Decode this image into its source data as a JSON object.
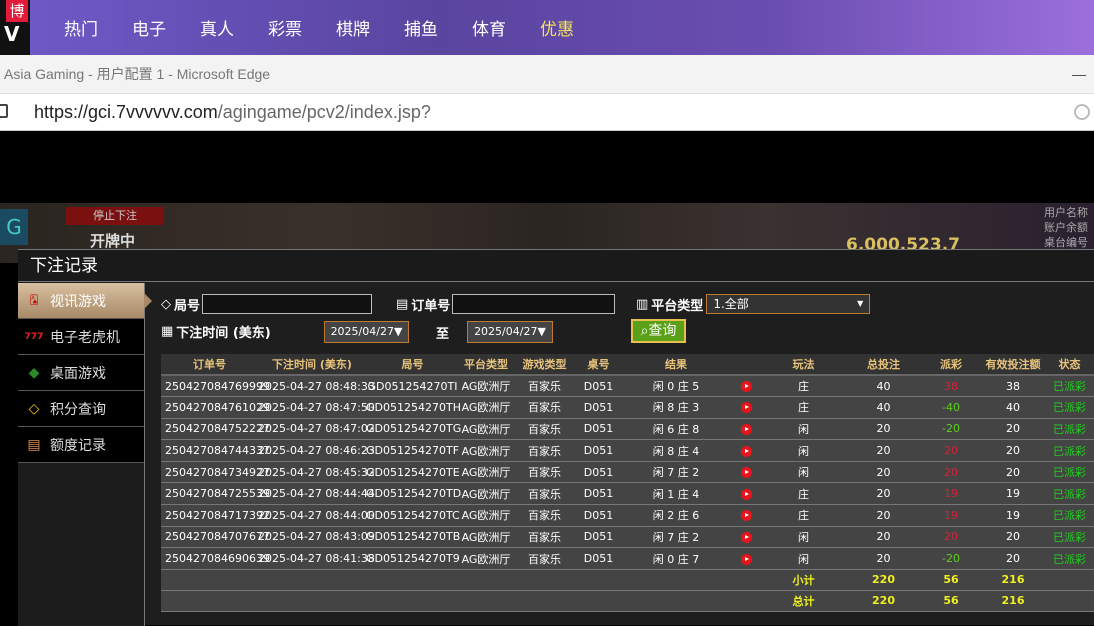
{
  "site_nav": {
    "logo_text": "博",
    "items": [
      "热门",
      "电子",
      "真人",
      "彩票",
      "棋牌",
      "捕鱼",
      "体育",
      "优惠"
    ],
    "highlight_index": 7
  },
  "browser": {
    "title": "Asia Gaming - 用户配置 1 - Microsoft Edge",
    "url_host": "https://gci.7vvvvvv.com",
    "url_path": "/agingame/pcv2/index.jsp?",
    "minimize": "—"
  },
  "background": {
    "stop_label": "停止下注",
    "open_label": "开牌中",
    "balance": "6,000,523.7",
    "user_lines": [
      "用户名称",
      "账户余额",
      "桌台编号"
    ]
  },
  "modal": {
    "title": "下注记录",
    "sidebar": [
      {
        "label": "视讯游戏",
        "icon": "playing-cards-icon",
        "active": true
      },
      {
        "label": "电子老虎机",
        "icon": "slot-777-icon"
      },
      {
        "label": "桌面游戏",
        "icon": "table-game-chips-icon"
      },
      {
        "label": "积分查询",
        "icon": "diamond-icon"
      },
      {
        "label": "额度记录",
        "icon": "document-icon"
      }
    ],
    "filters": {
      "round_label": "局号",
      "round_value": "",
      "order_label": "订单号",
      "order_value": "",
      "platform_label": "平台类型",
      "platform_value": "1.全部",
      "time_label": "下注时间 (美东)",
      "date_from": "2025/04/27",
      "to_label": "至",
      "date_to": "2025/04/27",
      "search_label": "查询"
    },
    "table": {
      "headers": [
        "订单号",
        "下注时间 (美东)",
        "局号",
        "平台类型",
        "游戏类型",
        "桌号",
        "结果",
        "",
        "玩法",
        "总投注",
        "派彩",
        "有效投注额",
        "状态"
      ],
      "rows": [
        [
          "250427084769999",
          "2025-04-27 08:48:33",
          "GD051254270TI",
          "AG欧洲厅",
          "百家乐",
          "D051",
          "闲 0 庄 5",
          "庄",
          "40",
          "38",
          "38",
          "已派彩"
        ],
        [
          "250427084761029",
          "2025-04-27 08:47:50",
          "GD051254270TH",
          "AG欧洲厅",
          "百家乐",
          "D051",
          "闲 8 庄 3",
          "庄",
          "40",
          "-40",
          "40",
          "已派彩"
        ],
        [
          "250427084752227",
          "2025-04-27 08:47:02",
          "GD051254270TG",
          "AG欧洲厅",
          "百家乐",
          "D051",
          "闲 6 庄 8",
          "闲",
          "20",
          "-20",
          "20",
          "已派彩"
        ],
        [
          "250427084744337",
          "2025-04-27 08:46:23",
          "GD051254270TF",
          "AG欧洲厅",
          "百家乐",
          "D051",
          "闲 8 庄 4",
          "闲",
          "20",
          "20",
          "20",
          "已派彩"
        ],
        [
          "250427084734927",
          "2025-04-27 08:45:32",
          "GD051254270TE",
          "AG欧洲厅",
          "百家乐",
          "D051",
          "闲 7 庄 2",
          "闲",
          "20",
          "20",
          "20",
          "已派彩"
        ],
        [
          "250427084725539",
          "2025-04-27 08:44:44",
          "GD051254270TD",
          "AG欧洲厅",
          "百家乐",
          "D051",
          "闲 1 庄 4",
          "庄",
          "20",
          "19",
          "19",
          "已派彩"
        ],
        [
          "250427084717392",
          "2025-04-27 08:44:00",
          "GD051254270TC",
          "AG欧洲厅",
          "百家乐",
          "D051",
          "闲 2 庄 6",
          "庄",
          "20",
          "19",
          "19",
          "已派彩"
        ],
        [
          "250427084707677",
          "2025-04-27 08:43:09",
          "GD051254270TB",
          "AG欧洲厅",
          "百家乐",
          "D051",
          "闲 7 庄 2",
          "闲",
          "20",
          "20",
          "20",
          "已派彩"
        ],
        [
          "250427084690639",
          "2025-04-27 08:41:38",
          "GD051254270T9",
          "AG欧洲厅",
          "百家乐",
          "D051",
          "闲 0 庄 7",
          "闲",
          "20",
          "-20",
          "20",
          "已派彩"
        ]
      ],
      "subtotal": {
        "label": "小计",
        "total_bet": "220",
        "payout": "56",
        "valid_bet": "216"
      },
      "total": {
        "label": "总计",
        "total_bet": "220",
        "payout": "56",
        "valid_bet": "216"
      }
    },
    "colors": {
      "header_text": "#e6c27a",
      "payout_negative": "#5ad018",
      "payout_positive": "#d8203a",
      "status": "#20d020",
      "summary": "#f0f020"
    }
  }
}
